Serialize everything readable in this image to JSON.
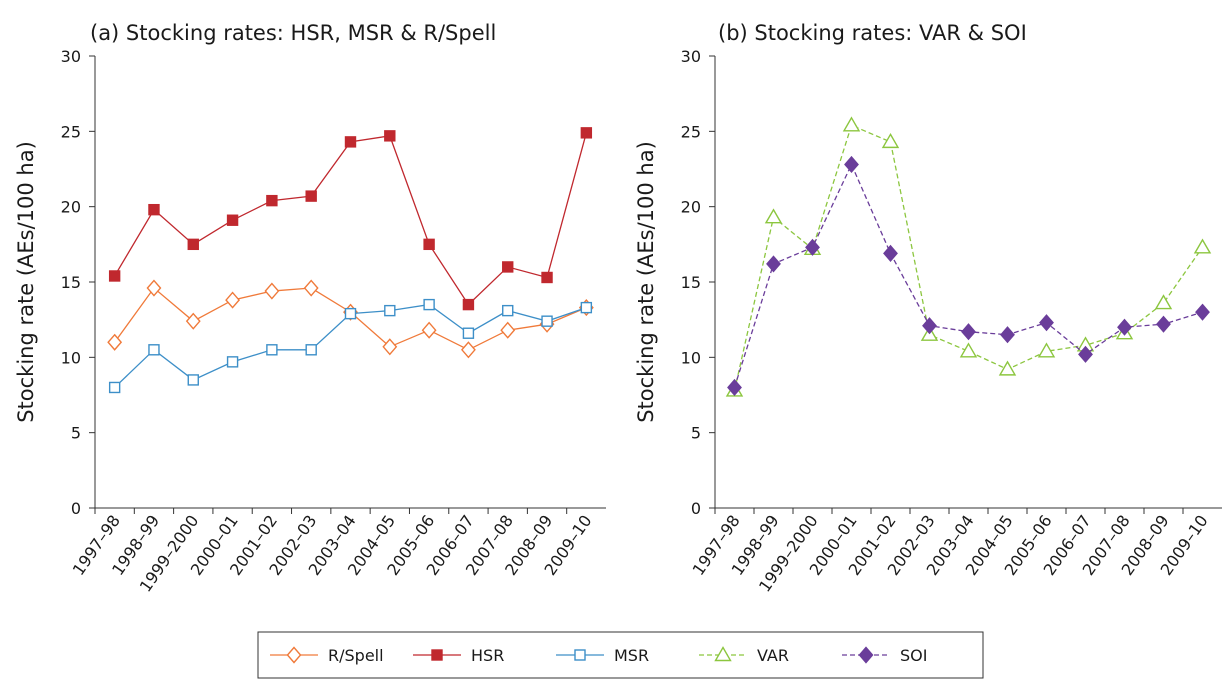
{
  "chart_data": [
    {
      "type": "line",
      "title": "(a) Stocking rates: HSR, MSR & R/Spell",
      "y_label": "Stocking rate (AEs/100 ha)",
      "categories": [
        "1997–98",
        "1998–99",
        "1999–2000",
        "2000–01",
        "2001–02",
        "2002–03",
        "2003–04",
        "2004–05",
        "2005–06",
        "2006–07",
        "2007–08",
        "2008–09",
        "2009–10"
      ],
      "ylim": [
        0,
        30
      ],
      "yticks": [
        0,
        5,
        10,
        15,
        20,
        25,
        30
      ],
      "series": [
        {
          "name": "R/Spell",
          "color": "#f07a3a",
          "marker": "diamond",
          "filled": false,
          "dashed": false,
          "values": [
            11,
            14.6,
            12.4,
            13.8,
            14.4,
            14.6,
            13,
            10.7,
            11.8,
            10.5,
            11.8,
            12.2,
            13.3
          ]
        },
        {
          "name": "HSR",
          "color": "#c0282e",
          "marker": "square",
          "filled": true,
          "dashed": false,
          "values": [
            15.4,
            19.8,
            17.5,
            19.1,
            20.4,
            20.7,
            24.3,
            24.7,
            17.5,
            13.5,
            16,
            15.3,
            24.9
          ]
        },
        {
          "name": "MSR",
          "color": "#3d8fc8",
          "marker": "square",
          "filled": false,
          "dashed": false,
          "values": [
            8,
            10.5,
            8.5,
            9.7,
            10.5,
            10.5,
            12.9,
            13.1,
            13.5,
            11.6,
            13.1,
            12.4,
            13.3
          ]
        }
      ]
    },
    {
      "type": "line",
      "title": "(b) Stocking rates: VAR & SOI",
      "y_label": "Stocking rate (AEs/100 ha)",
      "categories": [
        "1997–98",
        "1998–99",
        "1999–2000",
        "2000–01",
        "2001–02",
        "2002–03",
        "2003–04",
        "2004–05",
        "2005–06",
        "2006–07",
        "2007–08",
        "2008–09",
        "2009–10"
      ],
      "ylim": [
        0,
        30
      ],
      "yticks": [
        0,
        5,
        10,
        15,
        20,
        25,
        30
      ],
      "series": [
        {
          "name": "VAR",
          "color": "#8cc63f",
          "marker": "triangle",
          "filled": false,
          "dashed": true,
          "values": [
            7.8,
            19.3,
            17.2,
            25.4,
            24.3,
            11.5,
            10.4,
            9.2,
            10.4,
            10.8,
            11.6,
            13.6,
            17.3
          ]
        },
        {
          "name": "SOI",
          "color": "#6a3d9a",
          "marker": "diamond",
          "filled": true,
          "dashed": true,
          "values": [
            8,
            16.2,
            17.3,
            22.8,
            16.9,
            12.1,
            11.7,
            11.5,
            12.3,
            10.2,
            12,
            12.2,
            13
          ]
        }
      ]
    }
  ]
}
